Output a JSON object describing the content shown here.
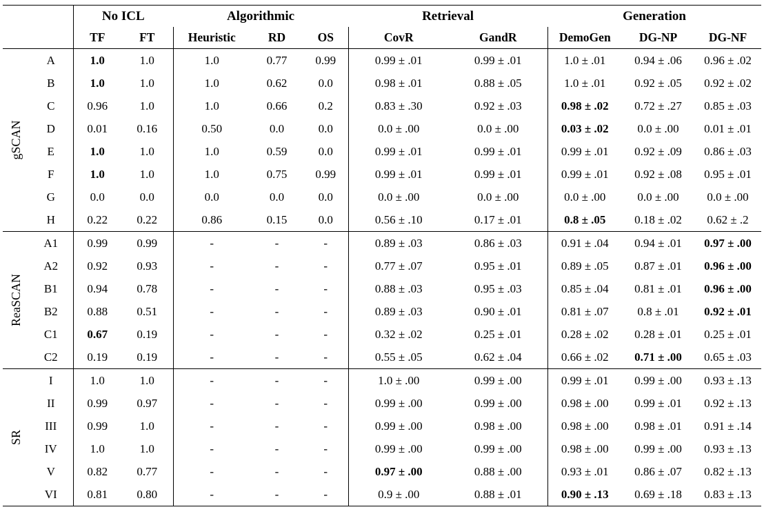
{
  "table": {
    "header": {
      "groups": [
        {
          "label": "No ICL"
        },
        {
          "label": "Algorithmic"
        },
        {
          "label": "Retrieval"
        },
        {
          "label": "Generation"
        }
      ],
      "columns": [
        "TF",
        "FT",
        "Heuristic",
        "RD",
        "OS",
        "CovR",
        "GandR",
        "DemoGen",
        "DG-NP",
        "DG-NF"
      ]
    },
    "sections": [
      {
        "group": "gSCAN",
        "rows": [
          {
            "label": "A",
            "cells": [
              "1.0",
              "1.0",
              "1.0",
              "0.77",
              "0.99",
              "0.99 ± .01",
              "0.99 ± .01",
              "1.0 ± .01",
              "0.94 ± .06",
              "0.96 ± .02"
            ],
            "bold": [
              0
            ]
          },
          {
            "label": "B",
            "cells": [
              "1.0",
              "1.0",
              "1.0",
              "0.62",
              "0.0",
              "0.98 ± .01",
              "0.88 ± .05",
              "1.0 ± .01",
              "0.92 ± .05",
              "0.92 ± .02"
            ],
            "bold": [
              0
            ]
          },
          {
            "label": "C",
            "cells": [
              "0.96",
              "1.0",
              "1.0",
              "0.66",
              "0.2",
              "0.83 ± .30",
              "0.92 ± .03",
              "0.98 ± .02",
              "0.72 ± .27",
              "0.85 ± .03"
            ],
            "bold": [
              7
            ]
          },
          {
            "label": "D",
            "cells": [
              "0.01",
              "0.16",
              "0.50",
              "0.0",
              "0.0",
              "0.0 ± .00",
              "0.0 ± .00",
              "0.03 ± .02",
              "0.0 ± .00",
              "0.01 ± .01"
            ],
            "bold": [
              7
            ]
          },
          {
            "label": "E",
            "cells": [
              "1.0",
              "1.0",
              "1.0",
              "0.59",
              "0.0",
              "0.99 ± .01",
              "0.99 ± .01",
              "0.99 ± .01",
              "0.92 ± .09",
              "0.86 ± .03"
            ],
            "bold": [
              0
            ]
          },
          {
            "label": "F",
            "cells": [
              "1.0",
              "1.0",
              "1.0",
              "0.75",
              "0.99",
              "0.99 ± .01",
              "0.99 ± .01",
              "0.99 ± .01",
              "0.92 ± .08",
              "0.95 ± .01"
            ],
            "bold": [
              0
            ]
          },
          {
            "label": "G",
            "cells": [
              "0.0",
              "0.0",
              "0.0",
              "0.0",
              "0.0",
              "0.0 ± .00",
              "0.0 ± .00",
              "0.0 ± .00",
              "0.0 ± .00",
              "0.0 ± .00"
            ],
            "bold": []
          },
          {
            "label": "H",
            "cells": [
              "0.22",
              "0.22",
              "0.86",
              "0.15",
              "0.0",
              "0.56 ± .10",
              "0.17 ± .01",
              "0.8 ± .05",
              "0.18 ± .02",
              "0.62 ± .2"
            ],
            "bold": [
              7
            ]
          }
        ]
      },
      {
        "group": "ReaSCAN",
        "rows": [
          {
            "label": "A1",
            "cells": [
              "0.99",
              "0.99",
              "-",
              "-",
              "-",
              "0.89 ± .03",
              "0.86 ± .03",
              "0.91 ± .04",
              "0.94 ± .01",
              "0.97 ± .00"
            ],
            "bold": [
              9
            ]
          },
          {
            "label": "A2",
            "cells": [
              "0.92",
              "0.93",
              "-",
              "-",
              "-",
              "0.77 ± .07",
              "0.95 ± .01",
              "0.89 ± .05",
              "0.87 ± .01",
              "0.96 ± .00"
            ],
            "bold": [
              9
            ]
          },
          {
            "label": "B1",
            "cells": [
              "0.94",
              "0.78",
              "-",
              "-",
              "-",
              "0.88 ± .03",
              "0.95 ± .03",
              "0.85 ± .04",
              "0.81 ± .01",
              "0.96 ± .00"
            ],
            "bold": [
              9
            ]
          },
          {
            "label": "B2",
            "cells": [
              "0.88",
              "0.51",
              "-",
              "-",
              "-",
              "0.89 ± .03",
              "0.90 ± .01",
              "0.81 ± .07",
              "0.8 ± .01",
              "0.92 ± .01"
            ],
            "bold": [
              9
            ]
          },
          {
            "label": "C1",
            "cells": [
              "0.67",
              "0.19",
              "-",
              "-",
              "-",
              "0.32 ± .02",
              "0.25 ± .01",
              "0.28 ± .02",
              "0.28 ± .01",
              "0.25 ± .01"
            ],
            "bold": [
              0
            ]
          },
          {
            "label": "C2",
            "cells": [
              "0.19",
              "0.19",
              "-",
              "-",
              "-",
              "0.55 ± .05",
              "0.62 ± .04",
              "0.66 ± .02",
              "0.71 ± .00",
              "0.65 ± .03"
            ],
            "bold": [
              8
            ]
          }
        ]
      },
      {
        "group": "SR",
        "rows": [
          {
            "label": "I",
            "cells": [
              "1.0",
              "1.0",
              "-",
              "-",
              "-",
              "1.0 ± .00",
              "0.99 ± .00",
              "0.99 ± .01",
              "0.99 ± .00",
              "0.93 ± .13"
            ],
            "bold": []
          },
          {
            "label": "II",
            "cells": [
              "0.99",
              "0.97",
              "-",
              "-",
              "-",
              "0.99 ± .00",
              "0.99 ± .00",
              "0.98 ± .00",
              "0.99 ± .01",
              "0.92 ± .13"
            ],
            "bold": []
          },
          {
            "label": "III",
            "cells": [
              "0.99",
              "1.0",
              "-",
              "-",
              "-",
              "0.99 ± .00",
              "0.98 ± .00",
              "0.98 ± .00",
              "0.98 ± .01",
              "0.91 ± .14"
            ],
            "bold": []
          },
          {
            "label": "IV",
            "cells": [
              "1.0",
              "1.0",
              "-",
              "-",
              "-",
              "0.99 ± .00",
              "0.99 ± .00",
              "0.98 ± .00",
              "0.99 ± .00",
              "0.93 ± .13"
            ],
            "bold": []
          },
          {
            "label": "V",
            "cells": [
              "0.82",
              "0.77",
              "-",
              "-",
              "-",
              "0.97 ± .00",
              "0.88 ± .00",
              "0.93 ± .01",
              "0.86 ± .07",
              "0.82 ± .13"
            ],
            "bold": [
              5
            ]
          },
          {
            "label": "VI",
            "cells": [
              "0.81",
              "0.80",
              "-",
              "-",
              "-",
              "0.9 ± .00",
              "0.88 ± .01",
              "0.90 ± .13",
              "0.69 ± .18",
              "0.83 ± .13"
            ],
            "bold": [
              7
            ]
          }
        ]
      }
    ]
  }
}
